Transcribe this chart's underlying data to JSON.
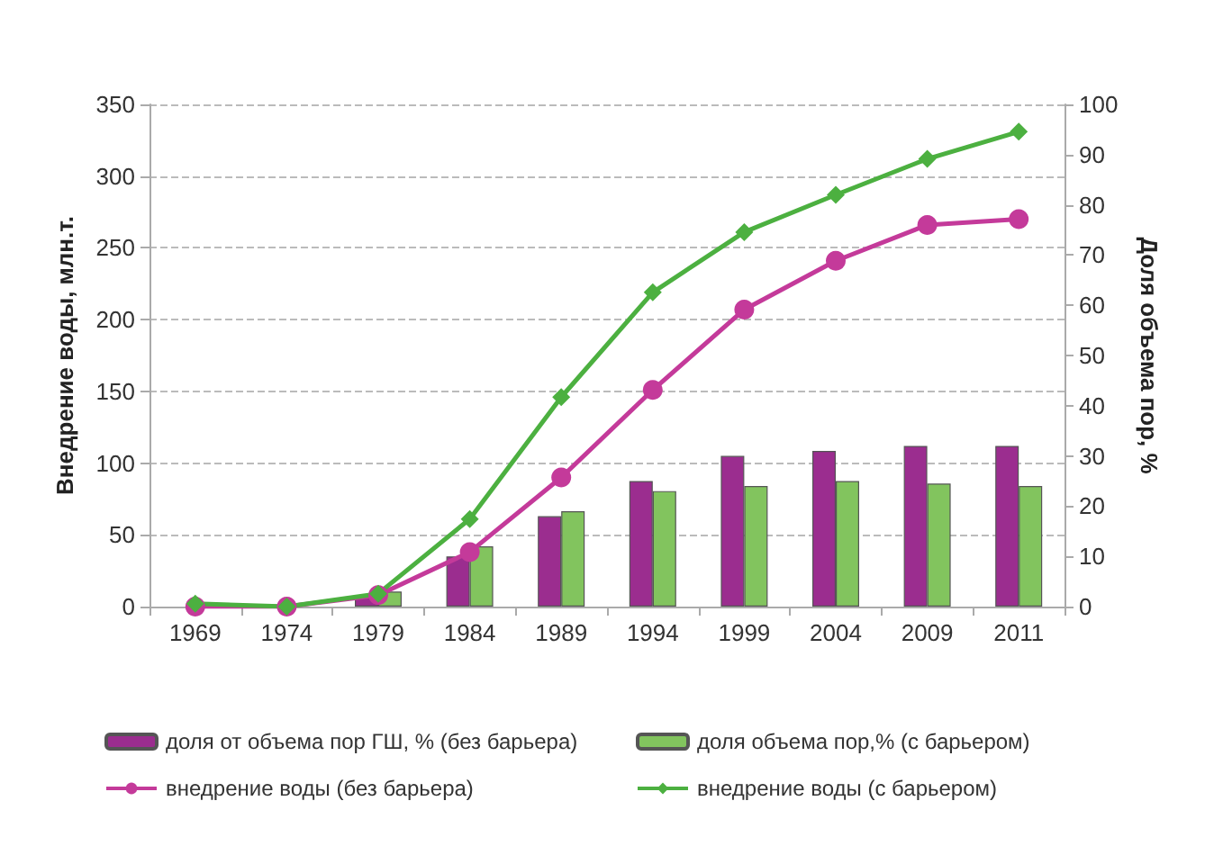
{
  "chart_data": {
    "type": "bar",
    "categories": [
      "1969",
      "1974",
      "1979",
      "1984",
      "1989",
      "1994",
      "1999",
      "2004",
      "2009",
      "2011"
    ],
    "ylabel": "Внедрение воды, млн.т.",
    "y2label": "Доля объема пор, %",
    "ylim": [
      0,
      350
    ],
    "yticks": [
      0,
      50,
      100,
      150,
      200,
      250,
      300,
      350
    ],
    "y2lim": [
      0,
      100
    ],
    "y2ticks": [
      0,
      10,
      20,
      30,
      40,
      50,
      60,
      70,
      80,
      90,
      100
    ],
    "grid": "y",
    "legend": "bottom",
    "series": [
      {
        "name": "доля от объема пор ГШ, % (без барьера)",
        "axis": "y2",
        "color": "#9b2d8f",
        "values": [
          null,
          null,
          2,
          10,
          18,
          25,
          30,
          31,
          32,
          32
        ]
      },
      {
        "name": "доля объема пор,% (с барьером)",
        "axis": "y2",
        "color": "#82c45e",
        "values": [
          null,
          null,
          3,
          12,
          19,
          23,
          24,
          25,
          24.5,
          24
        ]
      },
      {
        "name": "внедрение воды (без барьера)",
        "type": "line",
        "color": "#c43a9a",
        "marker": "circle",
        "values": [
          0,
          0,
          8,
          38,
          90,
          151,
          207,
          241,
          266,
          270
        ]
      },
      {
        "name": "внедрение воды (с барьером)",
        "type": "line",
        "color": "#4cb040",
        "marker": "diamond",
        "values": [
          2,
          0,
          9,
          61,
          146,
          219,
          261,
          287,
          312,
          331
        ]
      }
    ]
  }
}
